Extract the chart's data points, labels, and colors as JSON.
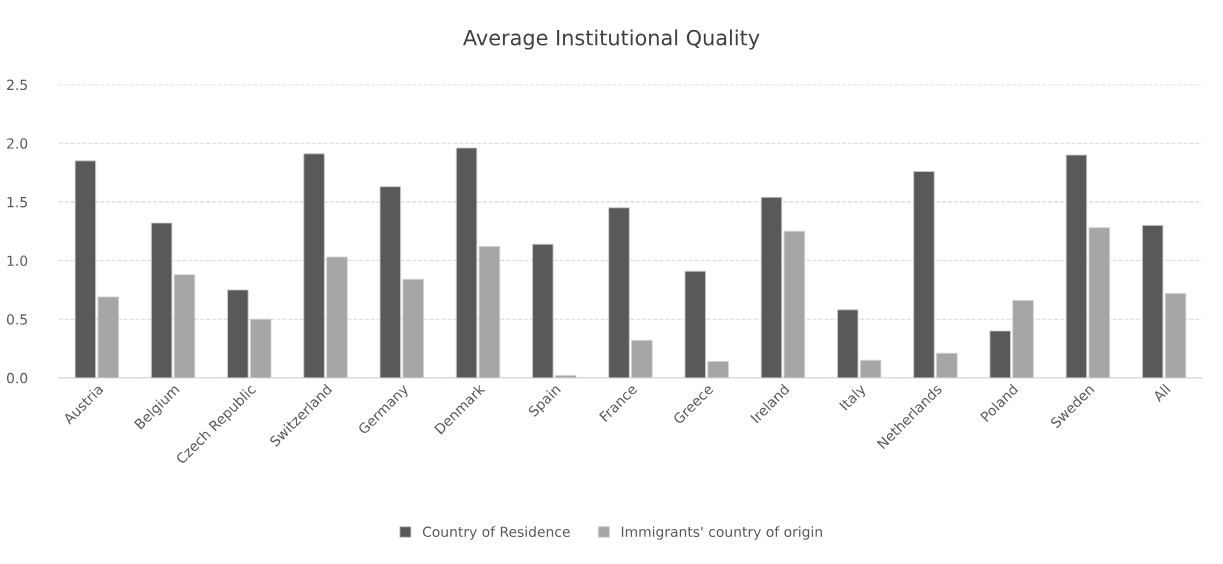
{
  "chart_data": {
    "type": "bar",
    "title": "Average Institutional Quality",
    "categories": [
      "Austria",
      "Belgium",
      "Czech Republic",
      "Switzerland",
      "Germany",
      "Denmark",
      "Spain",
      "France",
      "Greece",
      "Ireland",
      "Italy",
      "Netherlands",
      "Poland",
      "Sweden",
      "All"
    ],
    "series": [
      {
        "name": "Country of Residence",
        "color": "#595959",
        "values": [
          1.85,
          1.32,
          0.75,
          1.91,
          1.63,
          1.96,
          1.14,
          1.45,
          0.91,
          1.54,
          0.58,
          1.76,
          0.4,
          1.9,
          1.3
        ]
      },
      {
        "name": "Immigrants' country of origin",
        "color": "#a6a6a6",
        "values": [
          0.69,
          0.88,
          0.5,
          1.03,
          0.84,
          1.12,
          0.02,
          0.32,
          0.14,
          1.25,
          0.15,
          0.21,
          0.66,
          1.28,
          0.72
        ]
      }
    ],
    "ylim": [
      0,
      2.5
    ],
    "yticks": [
      {
        "value": 0,
        "label": "0.0"
      },
      {
        "value": 0.5,
        "label": "0.5"
      },
      {
        "value": 1,
        "label": "1.0"
      },
      {
        "value": 1.5,
        "label": "1.5"
      },
      {
        "value": 2,
        "label": "2.0"
      },
      {
        "value": 2.5,
        "label": "2.5"
      }
    ],
    "grid": "y",
    "legend": "bottom"
  }
}
